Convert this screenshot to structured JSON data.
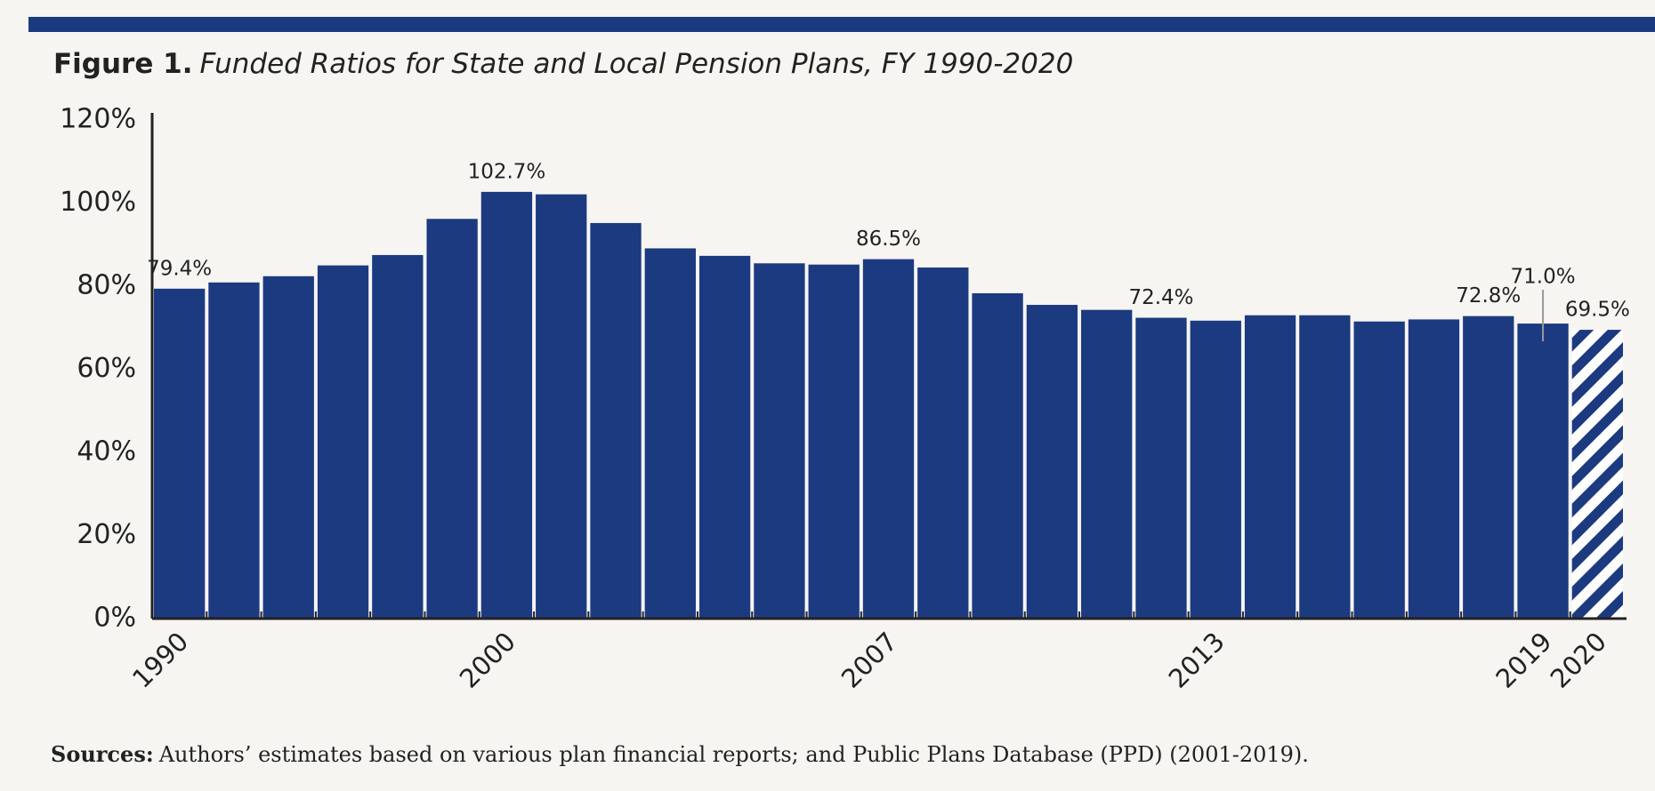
{
  "chart_data": {
    "type": "bar",
    "title_prefix": "Figure 1.",
    "title": "Funded Ratios for State and Local Pension Plans, FY 1990-2020",
    "categories": [
      "1990",
      null,
      null,
      null,
      null,
      null,
      "2000",
      null,
      null,
      null,
      null,
      null,
      null,
      "2007",
      null,
      null,
      null,
      null,
      null,
      "2013",
      null,
      null,
      null,
      null,
      null,
      "2019",
      "2020"
    ],
    "values": [
      79.4,
      80.9,
      82.4,
      85.0,
      87.5,
      96.2,
      102.7,
      102.1,
      95.2,
      89.1,
      87.3,
      85.5,
      85.2,
      86.5,
      84.5,
      78.3,
      75.5,
      74.3,
      72.4,
      71.7,
      73.0,
      73.0,
      71.5,
      72.0,
      72.8,
      71.0,
      69.5
    ],
    "value_labels": [
      "79.4%",
      null,
      null,
      null,
      null,
      null,
      "102.7%",
      null,
      null,
      null,
      null,
      null,
      null,
      "86.5%",
      null,
      null,
      null,
      null,
      "72.4%",
      null,
      null,
      null,
      null,
      null,
      "72.8%",
      "71.0%",
      "69.5%"
    ],
    "color": "#1c3a80",
    "last_bar_hatched": true,
    "ylim": [
      0,
      120
    ],
    "yticks": [
      {
        "value": 0,
        "label": "0%"
      },
      {
        "value": 20,
        "label": "20%"
      },
      {
        "value": 40,
        "label": "40%"
      },
      {
        "value": 60,
        "label": "60%"
      },
      {
        "value": 80,
        "label": "80%"
      },
      {
        "value": 100,
        "label": "100%"
      },
      {
        "value": 120,
        "label": "120%"
      }
    ],
    "grid": false,
    "source_label": "Sources:",
    "source_text": "Authors’ estimates based on various plan financial reports; and Public Plans Database (PPD) (2001-2019)."
  }
}
